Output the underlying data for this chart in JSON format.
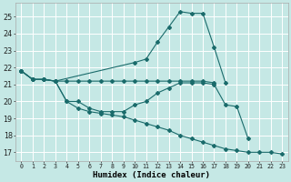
{
  "xlabel": "Humidex (Indice chaleur)",
  "xlim": [
    -0.5,
    23.5
  ],
  "ylim": [
    16.5,
    25.8
  ],
  "yticks": [
    17,
    18,
    19,
    20,
    21,
    22,
    23,
    24,
    25
  ],
  "xtick_labels": [
    "0",
    "1",
    "2",
    "3",
    "4",
    "5",
    "6",
    "7",
    "8",
    "9",
    "10",
    "11",
    "12",
    "13",
    "14",
    "15",
    "16",
    "17",
    "18",
    "19",
    "20",
    "21",
    "22",
    "23"
  ],
  "background_color": "#c5e8e5",
  "grid_color": "#ffffff",
  "line_color": "#1a6b6b",
  "lines": [
    {
      "x": [
        0,
        1,
        2,
        3,
        10,
        11,
        12,
        13,
        14,
        15,
        16,
        17,
        18
      ],
      "y": [
        21.8,
        21.3,
        21.3,
        21.2,
        22.3,
        22.5,
        23.5,
        24.4,
        25.3,
        25.2,
        25.2,
        23.2,
        21.1
      ]
    },
    {
      "x": [
        0,
        1,
        2,
        3,
        4,
        5,
        6,
        7,
        8,
        9,
        10,
        11,
        12,
        13,
        14,
        15,
        16,
        17,
        18,
        19,
        20
      ],
      "y": [
        21.8,
        21.3,
        21.3,
        21.2,
        20.0,
        20.0,
        19.6,
        19.4,
        19.4,
        19.4,
        19.8,
        20.0,
        20.5,
        20.8,
        21.1,
        21.1,
        21.1,
        21.0,
        19.8,
        19.7,
        17.8
      ]
    },
    {
      "x": [
        0,
        1,
        2,
        3,
        4,
        5,
        6,
        7,
        8,
        9,
        10,
        11,
        12,
        13,
        14,
        15,
        16,
        17,
        18,
        19,
        20,
        21,
        22,
        23
      ],
      "y": [
        21.8,
        21.3,
        21.3,
        21.2,
        20.0,
        19.6,
        19.4,
        19.3,
        19.2,
        19.1,
        18.9,
        18.7,
        18.5,
        18.3,
        18.0,
        17.8,
        17.6,
        17.4,
        17.2,
        17.1,
        17.0,
        17.0,
        17.0,
        16.9
      ]
    },
    {
      "x": [
        0,
        1,
        2,
        3,
        4,
        5,
        6,
        7,
        8,
        9,
        10,
        11,
        12,
        13,
        14,
        15,
        16,
        17
      ],
      "y": [
        21.8,
        21.3,
        21.3,
        21.2,
        21.2,
        21.2,
        21.2,
        21.2,
        21.2,
        21.2,
        21.2,
        21.2,
        21.2,
        21.2,
        21.2,
        21.2,
        21.2,
        21.1
      ]
    }
  ]
}
